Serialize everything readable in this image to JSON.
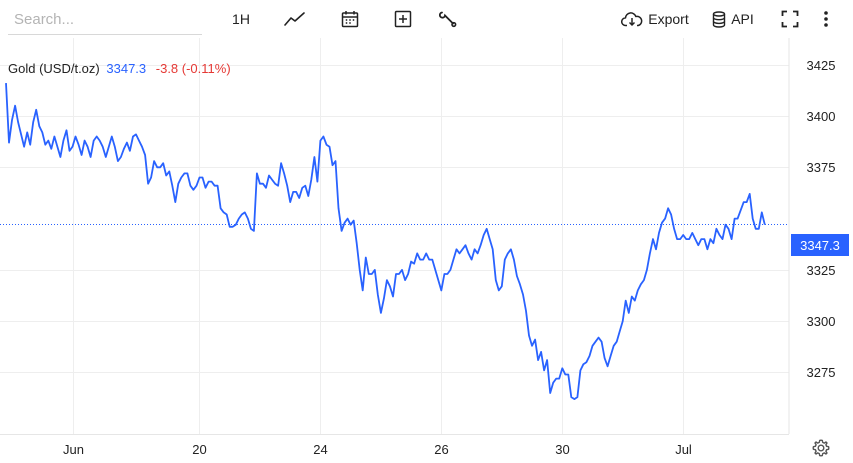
{
  "toolbar": {
    "search_placeholder": "Search...",
    "interval_label": "1H",
    "export_label": "Export",
    "api_label": "API",
    "icons": [
      "line-chart-icon",
      "calendar-icon",
      "plus-square-icon",
      "wrench-icon",
      "cloud-download-icon",
      "database-icon",
      "fullscreen-icon",
      "more-vertical-icon"
    ]
  },
  "legend": {
    "name": "Gold (USD/t.oz)",
    "last_value": "3347.3",
    "change": "-3.8 (-0.11%)"
  },
  "price_tag": "3347.3",
  "colors": {
    "series": "#2962ff",
    "negative": "#e53935",
    "grid": "#eeeeee",
    "axis_text": "#222222"
  },
  "chart_data": {
    "type": "line",
    "title": "",
    "xlabel": "",
    "ylabel": "",
    "ylim": [
      3245,
      3438
    ],
    "y_ticks": [
      3425,
      3400,
      3375,
      3325,
      3300,
      3275
    ],
    "x_ticks": [
      {
        "label": "Jun",
        "x": 11
      },
      {
        "label": "20",
        "x": 32
      },
      {
        "label": "24",
        "x": 52
      },
      {
        "label": "26",
        "x": 72
      },
      {
        "label": "30",
        "x": 92
      },
      {
        "label": "Jul",
        "x": 112
      }
    ],
    "x_range": [
      0,
      129.5
    ],
    "last_price_line": 3347.3,
    "grid": true,
    "series": [
      {
        "values": [
          [
            0.0,
            3416
          ],
          [
            0.5,
            3387
          ],
          [
            1.0,
            3398
          ],
          [
            1.5,
            3405
          ],
          [
            2.0,
            3397
          ],
          [
            2.5,
            3391
          ],
          [
            3.0,
            3385
          ],
          [
            3.5,
            3392
          ],
          [
            4.0,
            3386
          ],
          [
            4.5,
            3397
          ],
          [
            5.0,
            3403
          ],
          [
            5.5,
            3395
          ],
          [
            6.0,
            3392
          ],
          [
            6.5,
            3386
          ],
          [
            7.0,
            3388
          ],
          [
            7.5,
            3384
          ],
          [
            8.0,
            3390
          ],
          [
            8.5,
            3385
          ],
          [
            9.0,
            3380
          ],
          [
            9.5,
            3388
          ],
          [
            10.0,
            3393
          ],
          [
            10.5,
            3383
          ],
          [
            11.0,
            3385
          ],
          [
            11.5,
            3390
          ],
          [
            12.0,
            3386
          ],
          [
            12.5,
            3381
          ],
          [
            13.0,
            3388
          ],
          [
            13.5,
            3385
          ],
          [
            14.0,
            3380
          ],
          [
            14.5,
            3388
          ],
          [
            15.0,
            3390
          ],
          [
            15.5,
            3388
          ],
          [
            16.0,
            3385
          ],
          [
            16.5,
            3380
          ],
          [
            17.0,
            3385
          ],
          [
            17.5,
            3390
          ],
          [
            18.0,
            3385
          ],
          [
            18.5,
            3378
          ],
          [
            19.0,
            3380
          ],
          [
            19.5,
            3384
          ],
          [
            20.0,
            3387
          ],
          [
            20.5,
            3383
          ],
          [
            21.0,
            3390
          ],
          [
            21.5,
            3391
          ],
          [
            22.0,
            3388
          ],
          [
            22.5,
            3385
          ],
          [
            23.0,
            3381
          ],
          [
            23.5,
            3367
          ],
          [
            24.0,
            3370
          ],
          [
            24.5,
            3378
          ],
          [
            25.0,
            3375
          ],
          [
            25.5,
            3375
          ],
          [
            26.0,
            3377
          ],
          [
            26.5,
            3371
          ],
          [
            27.0,
            3373
          ],
          [
            27.5,
            3366
          ],
          [
            28.0,
            3358
          ],
          [
            28.5,
            3367
          ],
          [
            29.0,
            3370
          ],
          [
            29.5,
            3372
          ],
          [
            30.0,
            3372
          ],
          [
            30.5,
            3366
          ],
          [
            31.0,
            3364
          ],
          [
            31.5,
            3366
          ],
          [
            32.0,
            3370
          ],
          [
            32.5,
            3370
          ],
          [
            33.0,
            3365
          ],
          [
            33.5,
            3368
          ],
          [
            34.0,
            3368
          ],
          [
            34.5,
            3366
          ],
          [
            35.0,
            3366
          ],
          [
            35.5,
            3355
          ],
          [
            36.0,
            3353
          ],
          [
            36.5,
            3352
          ],
          [
            37.0,
            3346
          ],
          [
            37.5,
            3346
          ],
          [
            38.0,
            3347
          ],
          [
            38.5,
            3350
          ],
          [
            39.0,
            3352
          ],
          [
            39.5,
            3353
          ],
          [
            40.0,
            3350
          ],
          [
            40.5,
            3345
          ],
          [
            41.0,
            3344
          ],
          [
            41.5,
            3372
          ],
          [
            42.0,
            3367
          ],
          [
            42.5,
            3367
          ],
          [
            43.0,
            3365
          ],
          [
            43.5,
            3371
          ],
          [
            44.0,
            3369
          ],
          [
            44.5,
            3367
          ],
          [
            45.0,
            3366
          ],
          [
            45.5,
            3377
          ],
          [
            46.0,
            3372
          ],
          [
            46.5,
            3366
          ],
          [
            47.0,
            3358
          ],
          [
            47.5,
            3363
          ],
          [
            48.0,
            3363
          ],
          [
            48.5,
            3360
          ],
          [
            49.0,
            3365
          ],
          [
            49.5,
            3366
          ],
          [
            50.0,
            3361
          ],
          [
            50.5,
            3369
          ],
          [
            51.0,
            3380
          ],
          [
            51.5,
            3368
          ],
          [
            52.0,
            3388
          ],
          [
            52.5,
            3390
          ],
          [
            53.0,
            3386
          ],
          [
            53.5,
            3385
          ],
          [
            54.0,
            3376
          ],
          [
            54.5,
            3378
          ],
          [
            55.0,
            3355
          ],
          [
            55.5,
            3344
          ],
          [
            56.0,
            3348
          ],
          [
            56.5,
            3350
          ],
          [
            57.0,
            3347
          ],
          [
            57.5,
            3349
          ],
          [
            58.0,
            3338
          ],
          [
            58.5,
            3325
          ],
          [
            59.0,
            3315
          ],
          [
            59.5,
            3331
          ],
          [
            60.0,
            3323
          ],
          [
            60.5,
            3323
          ],
          [
            61.0,
            3325
          ],
          [
            61.5,
            3313
          ],
          [
            62.0,
            3304
          ],
          [
            62.5,
            3311
          ],
          [
            63.0,
            3320
          ],
          [
            63.5,
            3317
          ],
          [
            64.0,
            3312
          ],
          [
            64.5,
            3323
          ],
          [
            65.0,
            3323
          ],
          [
            65.5,
            3325
          ],
          [
            66.0,
            3320
          ],
          [
            66.5,
            3323
          ],
          [
            67.0,
            3329
          ],
          [
            67.5,
            3328
          ],
          [
            68.0,
            3333
          ],
          [
            68.5,
            3330
          ],
          [
            69.0,
            3330
          ],
          [
            69.5,
            3333
          ],
          [
            70.0,
            3330
          ],
          [
            70.5,
            3330
          ],
          [
            71.0,
            3325
          ],
          [
            71.5,
            3320
          ],
          [
            72.0,
            3315
          ],
          [
            72.5,
            3323
          ],
          [
            73.0,
            3323
          ],
          [
            73.5,
            3325
          ],
          [
            74.0,
            3330
          ],
          [
            74.5,
            3335
          ],
          [
            75.0,
            3333
          ],
          [
            75.5,
            3335
          ],
          [
            76.0,
            3337
          ],
          [
            76.5,
            3333
          ],
          [
            77.0,
            3330
          ],
          [
            77.5,
            3335
          ],
          [
            78.0,
            3333
          ],
          [
            78.5,
            3337
          ],
          [
            79.0,
            3342
          ],
          [
            79.5,
            3345
          ],
          [
            80.0,
            3340
          ],
          [
            80.5,
            3335
          ],
          [
            81.0,
            3320
          ],
          [
            81.5,
            3315
          ],
          [
            82.0,
            3317
          ],
          [
            82.5,
            3330
          ],
          [
            83.0,
            3333
          ],
          [
            83.5,
            3335
          ],
          [
            84.0,
            3330
          ],
          [
            84.5,
            3322
          ],
          [
            85.0,
            3318
          ],
          [
            85.5,
            3313
          ],
          [
            86.0,
            3305
          ],
          [
            86.5,
            3293
          ],
          [
            87.0,
            3288
          ],
          [
            87.5,
            3291
          ],
          [
            88.0,
            3281
          ],
          [
            88.5,
            3285
          ],
          [
            89.0,
            3276
          ],
          [
            89.5,
            3281
          ],
          [
            90.0,
            3265
          ],
          [
            90.5,
            3270
          ],
          [
            91.0,
            3272
          ],
          [
            91.5,
            3272
          ],
          [
            92.0,
            3277
          ],
          [
            92.5,
            3274
          ],
          [
            93.0,
            3274
          ],
          [
            93.5,
            3263
          ],
          [
            94.0,
            3262
          ],
          [
            94.5,
            3263
          ],
          [
            95.0,
            3276
          ],
          [
            95.5,
            3279
          ],
          [
            96.0,
            3280
          ],
          [
            96.5,
            3283
          ],
          [
            97.0,
            3288
          ],
          [
            97.5,
            3290
          ],
          [
            98.0,
            3292
          ],
          [
            98.5,
            3290
          ],
          [
            99.0,
            3282
          ],
          [
            99.5,
            3278
          ],
          [
            100.0,
            3283
          ],
          [
            100.5,
            3288
          ],
          [
            101.0,
            3290
          ],
          [
            101.5,
            3295
          ],
          [
            102.0,
            3300
          ],
          [
            102.5,
            3310
          ],
          [
            103.0,
            3304
          ],
          [
            103.5,
            3312
          ],
          [
            104.0,
            3310
          ],
          [
            104.5,
            3315
          ],
          [
            105.0,
            3318
          ],
          [
            105.5,
            3320
          ],
          [
            106.0,
            3325
          ],
          [
            106.5,
            3333
          ],
          [
            107.0,
            3340
          ],
          [
            107.5,
            3335
          ],
          [
            108.0,
            3343
          ],
          [
            108.5,
            3348
          ],
          [
            109.0,
            3350
          ],
          [
            109.5,
            3355
          ],
          [
            110.0,
            3352
          ],
          [
            110.5,
            3345
          ],
          [
            111.0,
            3340
          ],
          [
            111.5,
            3340
          ],
          [
            112.0,
            3342
          ],
          [
            112.5,
            3340
          ],
          [
            113.0,
            3340
          ],
          [
            113.5,
            3343
          ],
          [
            114.0,
            3340
          ],
          [
            114.5,
            3337
          ],
          [
            115.0,
            3340
          ],
          [
            115.5,
            3340
          ],
          [
            116.0,
            3335
          ],
          [
            116.5,
            3340
          ],
          [
            117.0,
            3338
          ],
          [
            117.5,
            3345
          ],
          [
            118.0,
            3342
          ],
          [
            118.5,
            3340
          ],
          [
            119.0,
            3347
          ],
          [
            119.5,
            3345
          ],
          [
            120.0,
            3340
          ],
          [
            120.5,
            3350
          ],
          [
            121.0,
            3350
          ],
          [
            121.5,
            3354
          ],
          [
            122.0,
            3358
          ],
          [
            122.5,
            3358
          ],
          [
            123.0,
            3362
          ],
          [
            123.5,
            3350
          ],
          [
            124.0,
            3345
          ],
          [
            124.5,
            3345
          ],
          [
            125.0,
            3353
          ],
          [
            125.5,
            3347
          ]
        ]
      }
    ]
  }
}
